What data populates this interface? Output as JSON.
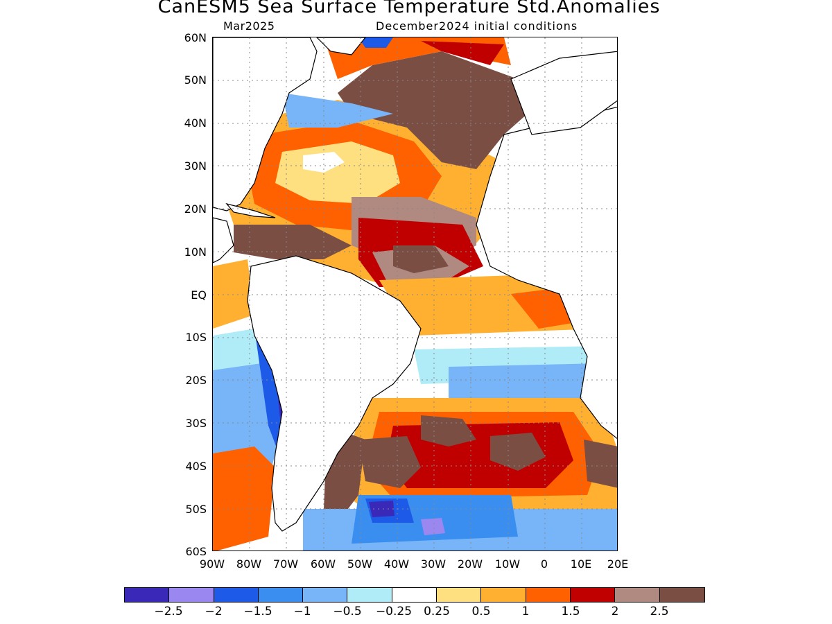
{
  "title": "CanESM5 Sea Surface Temperature Std.Anomalies",
  "forecast_month": "Mar2025",
  "initial_conditions": "December2024 initial conditions",
  "map": {
    "region": "Atlantic Ocean",
    "lat_labels": [
      "60N",
      "50N",
      "40N",
      "30N",
      "20N",
      "10N",
      "EQ",
      "10S",
      "20S",
      "30S",
      "40S",
      "50S",
      "60S"
    ],
    "lon_labels": [
      "90W",
      "80W",
      "70W",
      "60W",
      "50W",
      "40W",
      "30W",
      "20W",
      "10W",
      "0",
      "10E",
      "20E"
    ],
    "lat_range": [
      -60,
      60
    ],
    "lon_range": [
      -90,
      20
    ],
    "grid": "dotted",
    "anomaly_regions": [
      {
        "area": "North Atlantic subtropics",
        "level": "1 to 2.5",
        "color": "#ffb030"
      },
      {
        "area": "North Atlantic 40N-50N",
        "level": ">2.5",
        "color": "#7b4e44"
      },
      {
        "area": "Tropical North Atlantic",
        "level": ">2",
        "color": "#b08a80"
      },
      {
        "area": "Equatorial Atlantic",
        "level": "0.5 to 1",
        "color": "#ffb030"
      },
      {
        "area": "South Atlantic 10S-25S",
        "level": "-0.5 to -1",
        "color": "#78b4f8"
      },
      {
        "area": "South Atlantic 30S-45S",
        "level": "1.5 to 2.5",
        "color": "#e84c00"
      },
      {
        "area": "Southern Ocean 50S-60S",
        "level": "-1 to -2",
        "color": "#3a8ef0"
      },
      {
        "area": "Eastern Pacific coast South America",
        "level": "-1 to -2.5",
        "color": "#1e5ae8"
      }
    ]
  },
  "colorbar": {
    "colors": [
      "#3a28b8",
      "#9a88f0",
      "#1e5ae8",
      "#3a8ef0",
      "#78b4f8",
      "#b0ecf8",
      "#ffffff",
      "#ffe080",
      "#ffb030",
      "#ff6000",
      "#c00000",
      "#b08a80",
      "#7b4e44"
    ],
    "labels": [
      "−2.5",
      "−2",
      "−1.5",
      "−1",
      "−0.5",
      "−0.25",
      "0.25",
      "0.5",
      "1",
      "1.5",
      "2",
      "2.5"
    ]
  }
}
